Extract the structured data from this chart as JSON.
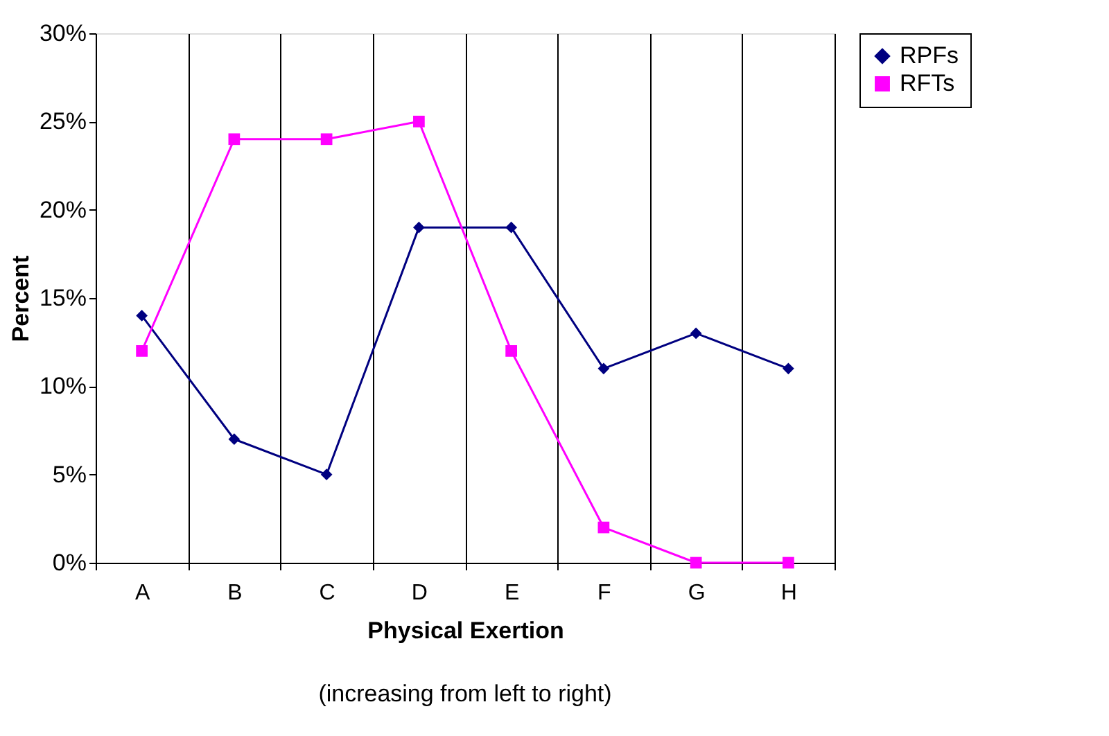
{
  "chart_data": {
    "type": "line",
    "xlabel": "Physical Exertion",
    "ylabel": "Percent",
    "annotations": [
      "(increasing from left to right)"
    ],
    "categories": [
      "A",
      "B",
      "C",
      "D",
      "E",
      "F",
      "G",
      "H"
    ],
    "series": [
      {
        "name": "RPFs",
        "color": "#000080",
        "marker": "diamond",
        "values": [
          14,
          7,
          5,
          19,
          19,
          11,
          13,
          11
        ]
      },
      {
        "name": "RFTs",
        "color": "#ff00ff",
        "marker": "square",
        "values": [
          12,
          24,
          24,
          25,
          12,
          2,
          0,
          0
        ]
      }
    ],
    "ylim": [
      0,
      30
    ],
    "yticks": [
      {
        "value": 0,
        "label": "0%"
      },
      {
        "value": 5,
        "label": "5%"
      },
      {
        "value": 10,
        "label": "10%"
      },
      {
        "value": 15,
        "label": "15%"
      },
      {
        "value": 20,
        "label": "20%"
      },
      {
        "value": 25,
        "label": "25%"
      },
      {
        "value": 30,
        "label": "30%"
      }
    ],
    "grid": "x",
    "legend": "right",
    "line_style": "solid"
  }
}
